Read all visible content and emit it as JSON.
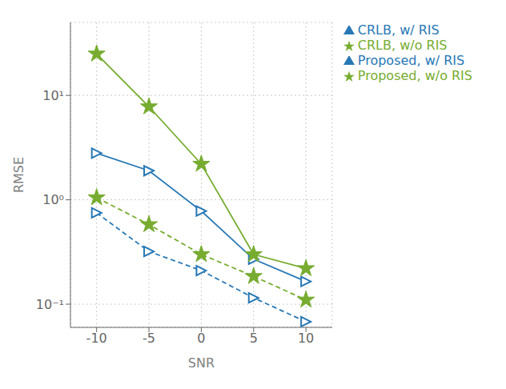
{
  "chart_data": {
    "type": "line",
    "xlabel": "SNR",
    "ylabel": "RMSE",
    "x": [
      -10,
      -5,
      0,
      5,
      10
    ],
    "series": [
      {
        "name": "Proposed, w/ RIS",
        "color": "#2878b5",
        "values": [
          2.8,
          1.9,
          0.78,
          0.27,
          0.165
        ],
        "marker": "triangle-right",
        "line_style": "solid"
      },
      {
        "name": "Proposed, w/o RIS",
        "color": "#77ac30",
        "values": [
          25,
          7.8,
          2.2,
          0.3,
          0.22
        ],
        "marker": "star",
        "line_style": "solid"
      },
      {
        "name": "CRLB, w/ RIS",
        "color": "#2878b5",
        "values": [
          0.75,
          0.32,
          0.21,
          0.115,
          0.068
        ],
        "marker": "triangle-right",
        "line_style": "dashed"
      },
      {
        "name": "CRLB, w/o RIS",
        "color": "#77ac30",
        "values": [
          1.05,
          0.58,
          0.3,
          0.185,
          0.11
        ],
        "marker": "star",
        "line_style": "dashed"
      }
    ],
    "xlim": [
      -12.5,
      12.5
    ],
    "ylim": [
      0.06,
      50
    ],
    "xticks": [
      -10,
      -5,
      0,
      5,
      10
    ],
    "yticks": [
      {
        "value": 0.1,
        "label": "10⁻¹"
      },
      {
        "value": 1,
        "label": "10⁰"
      },
      {
        "value": 10,
        "label": "10¹"
      }
    ],
    "log": "y",
    "grid": true,
    "legend": "upper right"
  }
}
